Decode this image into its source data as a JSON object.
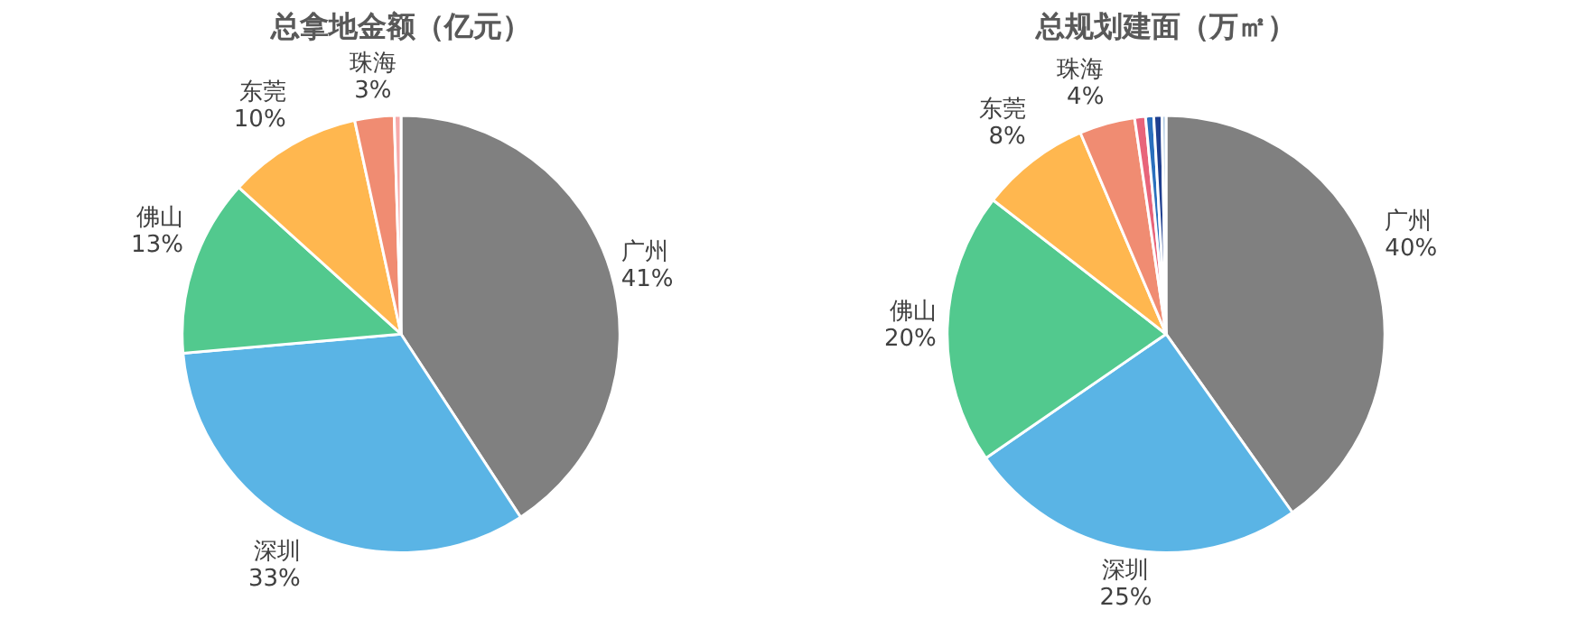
{
  "chart_data": [
    {
      "type": "pie",
      "title": "总拿地金额（亿元）",
      "categories": [
        "广州",
        "深圳",
        "佛山",
        "东莞",
        "珠海",
        null
      ],
      "values": [
        40.8,
        32.8,
        13.1,
        9.9,
        2.9,
        0.5
      ],
      "value_labels": [
        "41%",
        "33%",
        "13%",
        "10%",
        "3%",
        null
      ],
      "colors": [
        "#808080",
        "#5ab4e5",
        "#52c98e",
        "#ffb74f",
        "#f08c72",
        "#f6a9a9"
      ]
    },
    {
      "type": "pie",
      "title": "总规划建面（万㎡）",
      "categories": [
        "广州",
        "深圳",
        "佛山",
        "东莞",
        "珠海",
        null,
        null,
        null,
        null
      ],
      "values": [
        40.2,
        25.2,
        20.1,
        8.1,
        4.1,
        0.8,
        0.6,
        0.6,
        0.3
      ],
      "value_labels": [
        "40%",
        "25%",
        "20%",
        "8%",
        "4%",
        null,
        null,
        null,
        null
      ],
      "colors": [
        "#808080",
        "#5ab4e5",
        "#52c98e",
        "#ffb74f",
        "#f08c72",
        "#e8647a",
        "#2a6fbd",
        "#1f3f8f",
        "#a8c4e0"
      ]
    }
  ]
}
